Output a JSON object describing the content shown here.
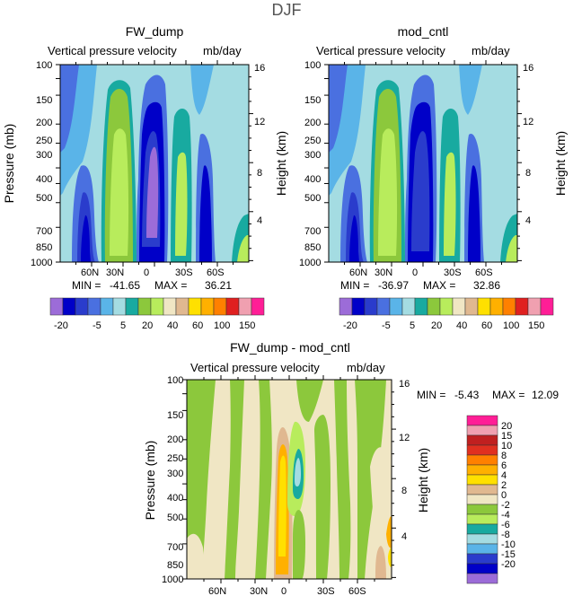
{
  "figure_title": "DJF",
  "colors": {
    "d-20": "#9c6cd8",
    "d-15": "#0000c8",
    "d-10": "#2a3ccc",
    "d-5": "#4a70e0",
    "d0": "#5ab4e8",
    "d5": "#a4dce2",
    "d10": "#18aaa0",
    "d15": "#8cc83c",
    "d20": "#b8ec5c",
    "d30": "#f0e6c4",
    "d40": "#e0b890",
    "d50": "#ffe000",
    "d60": "#ffb000",
    "d80": "#ff8000",
    "d100": "#e02020",
    "d150": "#f0a0b0",
    "d150p": "#ff1e96"
  },
  "chart_data": [
    {
      "type": "contour",
      "panel": "FW_dump",
      "title": "FW_dump",
      "subtitle_left": "Vertical pressure velocity",
      "subtitle_right": "mb/day",
      "ylabel": "Pressure (mb)",
      "ylabel_right": "Height (km)",
      "yticks": [
        "100",
        "150",
        "200",
        "250",
        "300",
        "400",
        "500",
        "700",
        "850",
        "1000"
      ],
      "ytick_values": [
        100,
        150,
        200,
        250,
        300,
        400,
        500,
        700,
        850,
        1000
      ],
      "xticks": [
        "60N",
        "30N",
        "0",
        "30S",
        "60S"
      ],
      "xtick_values": [
        60,
        30,
        0,
        -30,
        -60
      ],
      "height_ticks": [
        "4",
        "8",
        "12",
        "16"
      ],
      "height_values": [
        4,
        8,
        12,
        16
      ],
      "xlim": [
        90,
        -90
      ],
      "ylim": [
        1000,
        100
      ],
      "min_label": "MIN =",
      "min_value": "-41.65",
      "max_label": "MAX =",
      "max_value": "36.21",
      "color_levels": [
        "-20",
        "-5",
        "5",
        "20",
        "40",
        "60",
        "100",
        "150"
      ],
      "level_values": [
        -20,
        -15,
        -10,
        -5,
        0,
        5,
        10,
        15,
        20,
        30,
        40,
        50,
        60,
        80,
        100,
        150
      ],
      "features": [
        {
          "lat": 72,
          "center_p": 850,
          "min": -18
        },
        {
          "lat": 38,
          "center_p": 400,
          "max": 20
        },
        {
          "lat": 0,
          "center_p": 400,
          "min": -41.65
        },
        {
          "lat": -22,
          "center_p": 400,
          "max": 20
        },
        {
          "lat": -38,
          "center_p": 500,
          "min": -20
        }
      ]
    },
    {
      "type": "contour",
      "panel": "mod_cntl",
      "title": "mod_cntl",
      "subtitle_left": "Vertical pressure velocity",
      "subtitle_right": "mb/day",
      "ylabel": "Pressure (mb)",
      "ylabel_right": "Height (km)",
      "yticks": [
        "100",
        "150",
        "200",
        "250",
        "300",
        "400",
        "500",
        "700",
        "850",
        "1000"
      ],
      "ytick_values": [
        100,
        150,
        200,
        250,
        300,
        400,
        500,
        700,
        850,
        1000
      ],
      "xticks": [
        "60N",
        "30N",
        "0",
        "30S",
        "60S"
      ],
      "xtick_values": [
        60,
        30,
        0,
        -30,
        -60
      ],
      "height_ticks": [
        "4",
        "8",
        "12",
        "16"
      ],
      "height_values": [
        4,
        8,
        12,
        16
      ],
      "xlim": [
        90,
        -90
      ],
      "ylim": [
        1000,
        100
      ],
      "min_label": "MIN =",
      "min_value": "-36.97",
      "max_label": "MAX =",
      "max_value": "32.86",
      "color_levels": [
        "-20",
        "-5",
        "5",
        "20",
        "40",
        "60",
        "100",
        "150"
      ],
      "level_values": [
        -20,
        -15,
        -10,
        -5,
        0,
        5,
        10,
        15,
        20,
        30,
        40,
        50,
        60,
        80,
        100,
        150
      ],
      "features": [
        {
          "lat": 72,
          "center_p": 850,
          "min": -18
        },
        {
          "lat": 38,
          "center_p": 400,
          "max": 20
        },
        {
          "lat": 0,
          "center_p": 400,
          "min": -36.97
        },
        {
          "lat": -22,
          "center_p": 400,
          "max": 20
        },
        {
          "lat": -38,
          "center_p": 500,
          "min": -20
        }
      ]
    },
    {
      "type": "contour",
      "panel": "diff",
      "title": "FW_dump - mod_cntl",
      "subtitle_left": "Vertical pressure velocity",
      "subtitle_right": "mb/day",
      "ylabel": "Pressure (mb)",
      "ylabel_right": "Height (km)",
      "yticks": [
        "100",
        "150",
        "200",
        "250",
        "300",
        "400",
        "500",
        "700",
        "850",
        "1000"
      ],
      "ytick_values": [
        100,
        150,
        200,
        250,
        300,
        400,
        500,
        700,
        850,
        1000
      ],
      "xticks": [
        "60N",
        "30N",
        "0",
        "30S",
        "60S"
      ],
      "xtick_values": [
        60,
        30,
        0,
        -30,
        -60
      ],
      "height_ticks": [
        "4",
        "8",
        "12",
        "16"
      ],
      "height_values": [
        4,
        8,
        12,
        16
      ],
      "xlim": [
        90,
        -90
      ],
      "ylim": [
        1000,
        100
      ],
      "min_label": "MIN =",
      "min_value": "-5.43",
      "max_label": "MAX =",
      "max_value": "12.09",
      "color_levels": [
        "20",
        "15",
        "10",
        "8",
        "6",
        "4",
        "2",
        "0",
        "-2",
        "-4",
        "-6",
        "-8",
        "-10",
        "-15",
        "-20"
      ],
      "level_values": [
        20,
        15,
        10,
        8,
        6,
        4,
        2,
        0,
        -2,
        -4,
        -6,
        -8,
        -10,
        -15,
        -20
      ],
      "features": [
        {
          "lat": 6,
          "center_p": 400,
          "max": 12.09
        },
        {
          "lat": -8,
          "center_p": 400,
          "min": -5.43
        }
      ]
    }
  ]
}
